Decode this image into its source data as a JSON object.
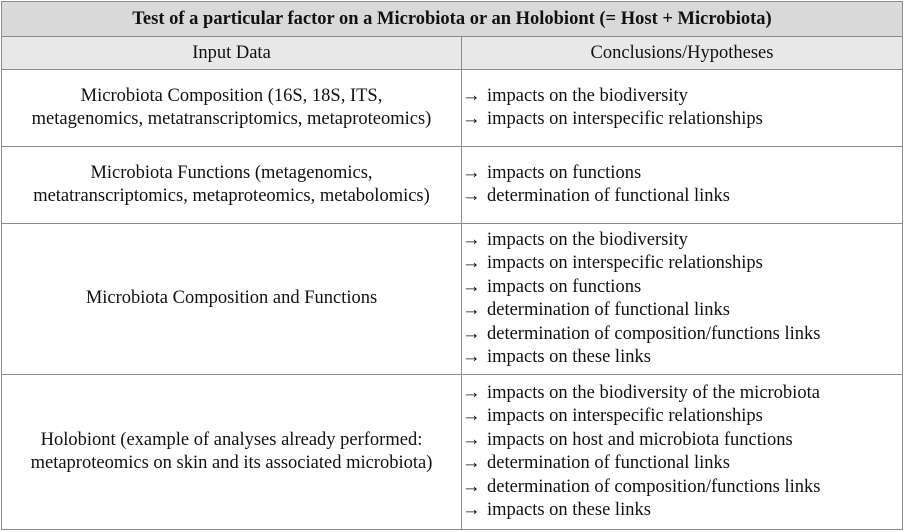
{
  "table": {
    "title": "Test of a particular factor on a Microbiota or an Holobiont (= Host + Microbiota)",
    "headers": {
      "input": "Input Data",
      "conclusions": "Conclusions/Hypotheses"
    },
    "rows": [
      {
        "input_lines": [
          "Microbiota Composition (16S, 18S, ITS,",
          "metagenomics, metatranscriptomics, metaproteomics)"
        ],
        "conclusions": [
          "impacts on the biodiversity",
          "impacts on interspecific relationships"
        ]
      },
      {
        "input_lines": [
          "Microbiota Functions (metagenomics,",
          "metatranscriptomics, metaproteomics, metabolomics)"
        ],
        "conclusions": [
          "impacts on functions",
          "determination of functional links"
        ]
      },
      {
        "input_lines": [
          "Microbiota Composition and Functions"
        ],
        "conclusions": [
          "impacts on the biodiversity",
          "impacts on interspecific relationships",
          "impacts on functions",
          "determination of functional links",
          "determination of composition/functions links",
          "impacts on these links"
        ]
      },
      {
        "input_lines": [
          "Holobiont (example of analyses already performed:",
          "metaproteomics on skin and its associated microbiota)"
        ],
        "conclusions": [
          "impacts on the biodiversity of the microbiota",
          "impacts on interspecific relationships",
          "impacts on host and microbiota functions",
          "determination of functional links",
          "determination of composition/functions links",
          "impacts on these links"
        ]
      }
    ]
  },
  "arrow_glyph": "→",
  "colors": {
    "title_bg": "#d9d9d9",
    "header_bg": "#e8e8e8",
    "border": "#8c8c8c"
  }
}
